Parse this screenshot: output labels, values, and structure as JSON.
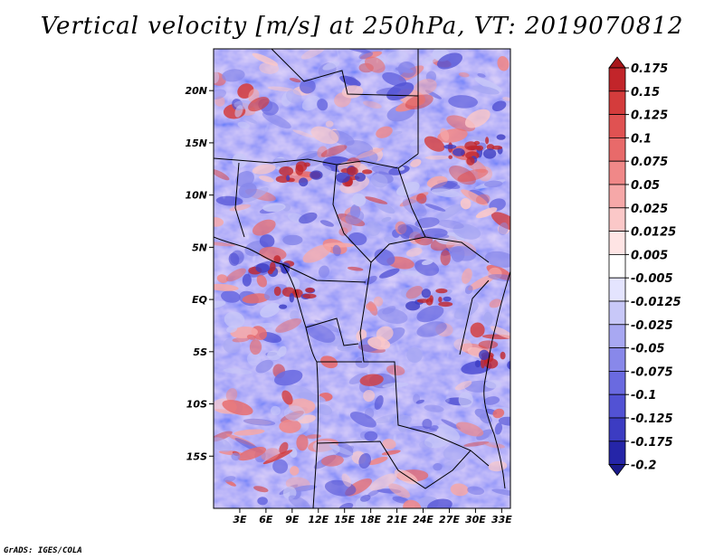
{
  "title": "Vertical velocity [m/s] at 250hPa, VT: 2019070812",
  "credit": "GrADS: IGES/COLA",
  "map": {
    "lat_range": [
      -20,
      24
    ],
    "lon_range": [
      0,
      34
    ],
    "lat_labels": [
      "20N",
      "15N",
      "10N",
      "5N",
      "EQ",
      "5S",
      "10S",
      "15S"
    ],
    "lat_values": [
      20,
      15,
      10,
      5,
      0,
      -5,
      -10,
      -15
    ],
    "lon_labels": [
      "3E",
      "6E",
      "9E",
      "12E",
      "15E",
      "18E",
      "21E",
      "24E",
      "27E",
      "30E",
      "33E"
    ],
    "lon_values": [
      3,
      6,
      9,
      12,
      15,
      18,
      21,
      24,
      27,
      30,
      33
    ]
  },
  "colorbar": {
    "labels": [
      "0.175",
      "0.15",
      "0.125",
      "0.1",
      "0.075",
      "0.05",
      "0.025",
      "0.0125",
      "0.005",
      "-0.005",
      "-0.0125",
      "-0.025",
      "-0.05",
      "-0.075",
      "-0.1",
      "-0.125",
      "-0.175",
      "-0.2"
    ],
    "colors": [
      "#a8161a",
      "#c2252a",
      "#d43c3c",
      "#e05252",
      "#e86a6a",
      "#f08888",
      "#f6a8a8",
      "#fbc8c8",
      "#fee4e4",
      "#ffffff",
      "#e4e4fe",
      "#c8c8f8",
      "#a8a8f2",
      "#8888ea",
      "#6a6ae0",
      "#5252d4",
      "#3c3cc2",
      "#2525a8",
      "#1a1a8a"
    ]
  }
}
